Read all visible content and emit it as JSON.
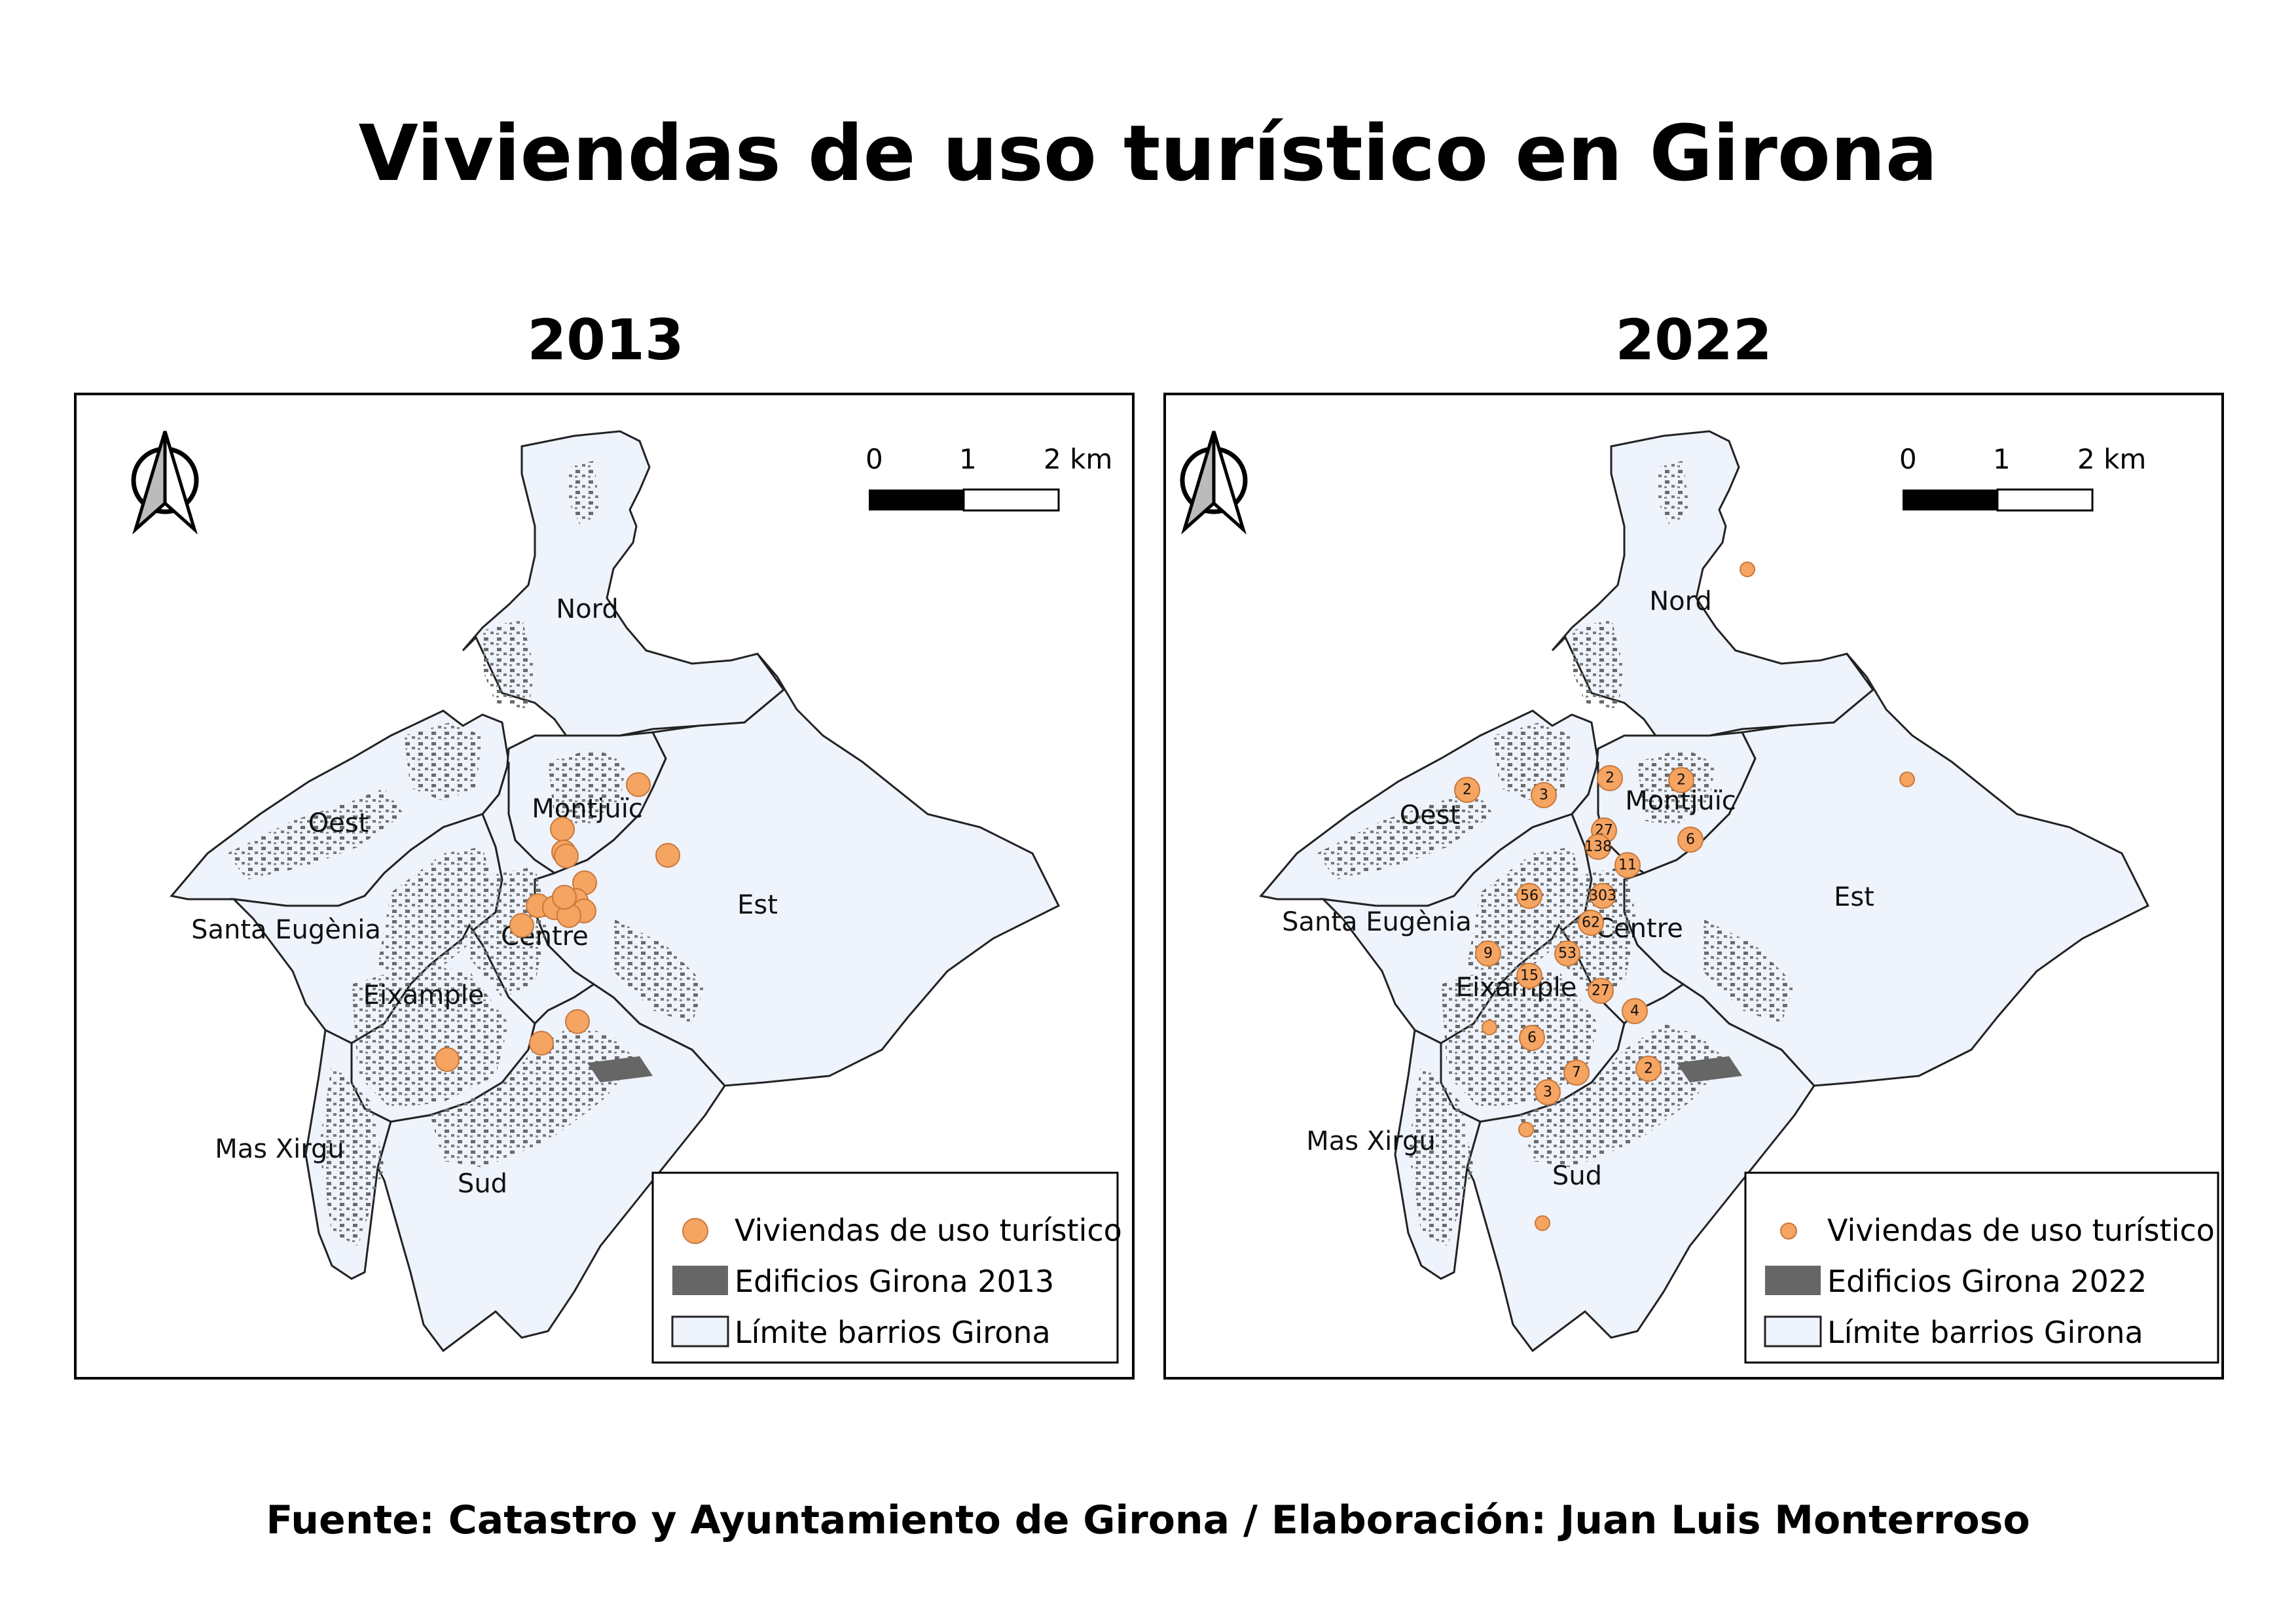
{
  "title": "Viviendas de uso turístico en Girona",
  "footer": "Fuente: Catastro y Ayuntamiento de Girona / Elaboración: Juan Luis Monterroso",
  "colors": {
    "point_fill": "#f5a462",
    "point_stroke": "#c9783a",
    "building": "#666666",
    "neighbourhood_fill": "#eef3fc",
    "boundary": "#222222"
  },
  "neighbourhoods": [
    "Nord",
    "Oest",
    "Montjuïc",
    "Est",
    "Santa Eugènia",
    "Centre",
    "Eixample",
    "Mas Xirgu",
    "Sud"
  ],
  "maps": [
    {
      "year": "2013",
      "scale_bar": {
        "labels": [
          "0",
          "1",
          "2 km"
        ]
      },
      "legend": [
        {
          "label": "Viviendas de uso turístico",
          "symbol": "point-large"
        },
        {
          "label": "Edificios Girona 2013",
          "symbol": "building"
        },
        {
          "label": "Límite barrios Girona",
          "symbol": "boundary"
        }
      ],
      "points": []
    },
    {
      "year": "2022",
      "scale_bar": {
        "labels": [
          "0",
          "1",
          "2 km"
        ]
      },
      "legend": [
        {
          "label": "Viviendas de uso turístico",
          "symbol": "point-small"
        },
        {
          "label": "Edificios Girona 2022",
          "symbol": "building"
        },
        {
          "label": "Límite barrios Girona",
          "symbol": "boundary"
        }
      ],
      "counts": [
        "2",
        "3",
        "2",
        "2",
        "27",
        "138",
        "6",
        "11",
        "56",
        "303",
        "62",
        "9",
        "53",
        "15",
        "27",
        "4",
        "6",
        "7",
        "2",
        "3"
      ]
    }
  ]
}
